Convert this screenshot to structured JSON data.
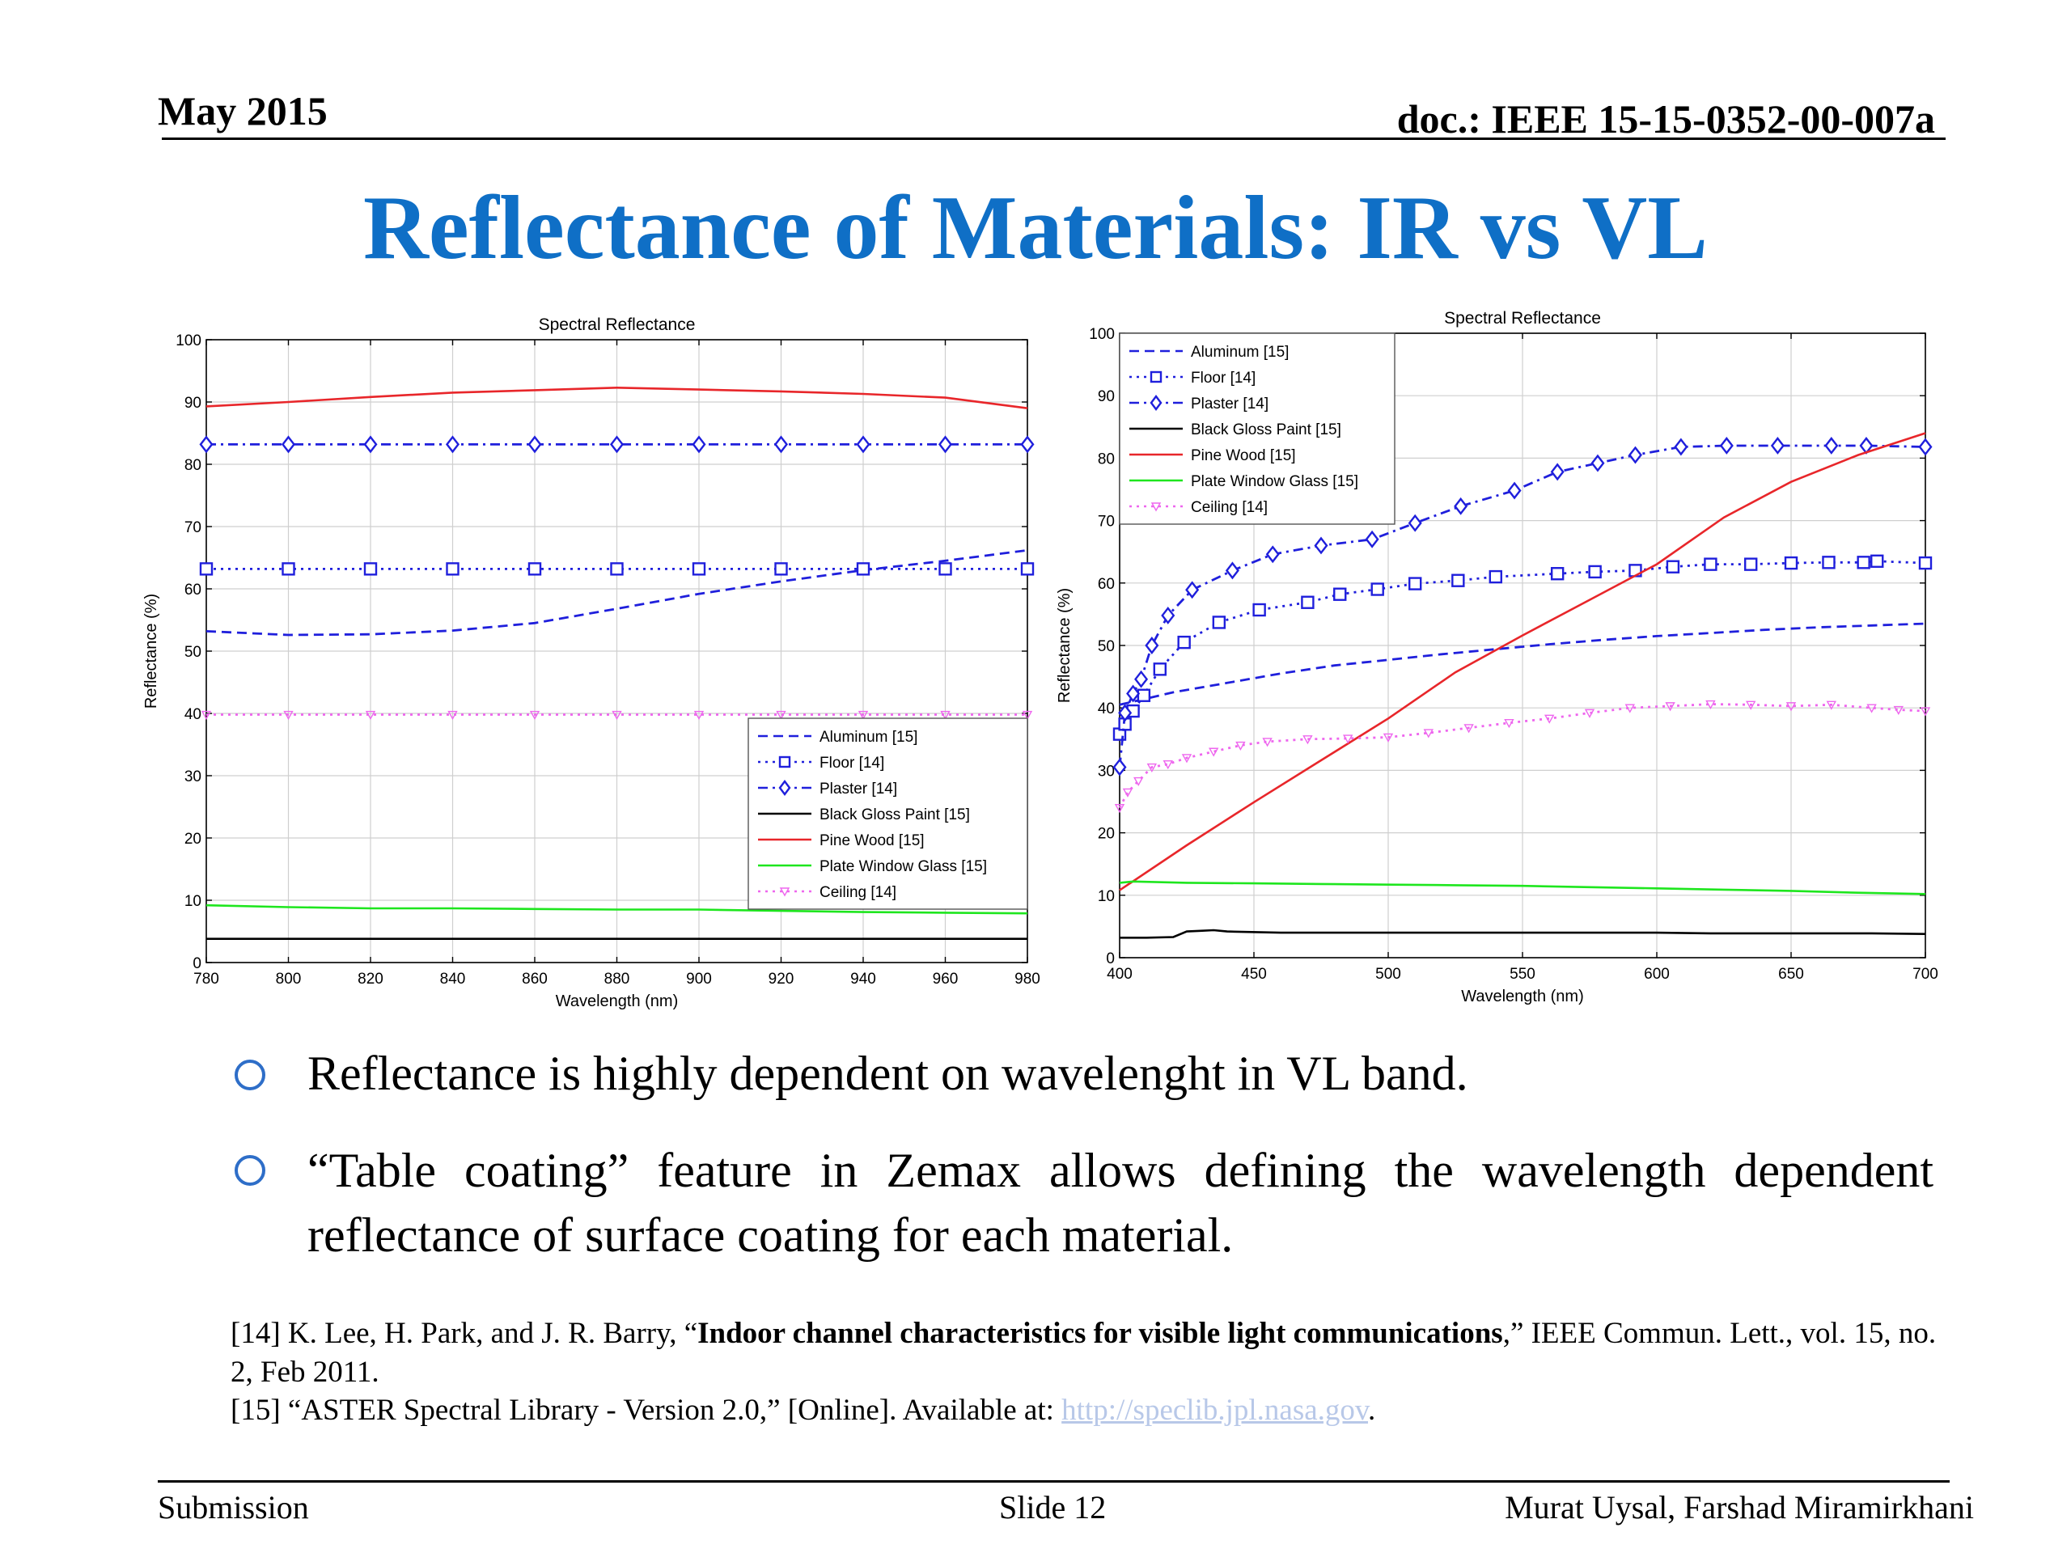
{
  "header": {
    "date": "May 2015",
    "doc": "doc.: IEEE 15-15-0352-00-007a"
  },
  "title": "Reflectance of Materials: IR vs VL",
  "bullets": [
    "Reflectance is highly dependent on wavelenght in VL band.",
    "“Table coating” feature in Zemax allows defining the wavelength dependent reflectance of surface coating for each material."
  ],
  "references": {
    "r14_prefix": "[14] K. Lee, H. Park, and J. R. Barry, “",
    "r14_title": "Indoor channel characteristics for visible light communications",
    "r14_suffix": ",” IEEE Commun. Lett., vol. 15,  no. 2, Feb 2011.",
    "r15_prefix": "[15] “ASTER Spectral Library - Version 2.0,” [Online]. Available at: ",
    "r15_link": "http://speclib.jpl.nasa.gov",
    "r15_suffix": "."
  },
  "footer": {
    "left": "Submission",
    "center": "Slide 12",
    "right": "Murat Uysal, Farshad Miramirkhani"
  },
  "colors": {
    "title": "#0f6fc6",
    "blue": "#1f1fdc",
    "red": "#e8262a",
    "green": "#1ee61e",
    "black": "#000000",
    "magenta": "#ee66ee",
    "bullet": "#2e6ec8"
  },
  "chart_data": [
    {
      "type": "line",
      "title": "Spectral Reflectance",
      "xlabel": "Wavelength (nm)",
      "ylabel": "Reflectance (%)",
      "xlim": [
        780,
        980
      ],
      "ylim": [
        0,
        100
      ],
      "xticks": [
        780,
        800,
        820,
        840,
        860,
        880,
        900,
        920,
        940,
        960,
        980
      ],
      "yticks": [
        0,
        10,
        20,
        30,
        40,
        50,
        60,
        70,
        80,
        90,
        100
      ],
      "grid": true,
      "legend_position": "bottom-right",
      "series": [
        {
          "name": "Aluminum [15]",
          "style": "dash",
          "color": "#1f1fdc",
          "x": [
            780,
            800,
            820,
            840,
            860,
            880,
            900,
            920,
            940,
            960,
            980
          ],
          "y": [
            53.2,
            52.6,
            52.7,
            53.3,
            54.5,
            56.8,
            59.2,
            61.2,
            63.0,
            64.5,
            66.2
          ]
        },
        {
          "name": "Floor [14]",
          "style": "dot",
          "marker": "square",
          "color": "#1f1fdc",
          "x": [
            780,
            800,
            820,
            840,
            860,
            880,
            900,
            920,
            940,
            960,
            980
          ],
          "y": [
            63.2,
            63.2,
            63.2,
            63.2,
            63.2,
            63.2,
            63.2,
            63.2,
            63.2,
            63.2,
            63.2
          ]
        },
        {
          "name": "Plaster [14]",
          "style": "dashdot",
          "marker": "diamond",
          "color": "#1f1fdc",
          "x": [
            780,
            800,
            820,
            840,
            860,
            880,
            900,
            920,
            940,
            960,
            980
          ],
          "y": [
            83.2,
            83.2,
            83.2,
            83.2,
            83.2,
            83.2,
            83.2,
            83.2,
            83.2,
            83.2,
            83.2
          ]
        },
        {
          "name": "Black Gloss Paint [15]",
          "style": "solid",
          "color": "#000000",
          "x": [
            780,
            800,
            820,
            840,
            860,
            880,
            900,
            920,
            940,
            960,
            980
          ],
          "y": [
            3.8,
            3.8,
            3.8,
            3.8,
            3.8,
            3.8,
            3.8,
            3.8,
            3.8,
            3.8,
            3.8
          ]
        },
        {
          "name": "Pine Wood [15]",
          "style": "solid",
          "color": "#e8262a",
          "x": [
            780,
            800,
            820,
            840,
            860,
            880,
            900,
            920,
            940,
            960,
            980
          ],
          "y": [
            89.3,
            90.0,
            90.8,
            91.5,
            91.9,
            92.3,
            92.0,
            91.7,
            91.3,
            90.7,
            89.0
          ]
        },
        {
          "name": "Plate Window Glass [15]",
          "style": "solid",
          "color": "#1ee61e",
          "x": [
            780,
            800,
            820,
            840,
            860,
            880,
            900,
            920,
            940,
            960,
            980
          ],
          "y": [
            9.2,
            8.9,
            8.7,
            8.7,
            8.6,
            8.5,
            8.5,
            8.3,
            8.1,
            8.0,
            7.9
          ]
        },
        {
          "name": "Ceiling [14]",
          "style": "dot",
          "marker": "triangle-down",
          "color": "#ee66ee",
          "x": [
            780,
            800,
            820,
            840,
            860,
            880,
            900,
            920,
            940,
            960,
            980
          ],
          "y": [
            39.8,
            39.8,
            39.8,
            39.8,
            39.8,
            39.8,
            39.8,
            39.8,
            39.8,
            39.8,
            39.8
          ]
        }
      ]
    },
    {
      "type": "line",
      "title": "Spectral Reflectance",
      "xlabel": "Wavelength (nm)",
      "ylabel": "Reflectance (%)",
      "xlim": [
        400,
        700
      ],
      "ylim": [
        0,
        100
      ],
      "xticks": [
        400,
        450,
        500,
        550,
        600,
        650,
        700
      ],
      "yticks": [
        0,
        10,
        20,
        30,
        40,
        50,
        60,
        70,
        80,
        90,
        100
      ],
      "grid": true,
      "legend_position": "top-left",
      "series": [
        {
          "name": "Aluminum [15]",
          "style": "dash",
          "color": "#1f1fdc",
          "x": [
            400,
            410,
            420,
            440,
            460,
            480,
            500,
            520,
            540,
            560,
            580,
            600,
            620,
            640,
            660,
            680,
            700
          ],
          "y": [
            40.5,
            41.5,
            42.5,
            44.0,
            45.5,
            46.8,
            47.7,
            48.6,
            49.4,
            50.2,
            50.9,
            51.5,
            52.0,
            52.5,
            52.9,
            53.2,
            53.5
          ]
        },
        {
          "name": "Floor [14]",
          "style": "dot",
          "marker": "square",
          "color": "#1f1fdc",
          "x": [
            400,
            402,
            405,
            409,
            415,
            424,
            437,
            452,
            470,
            482,
            496,
            510,
            526,
            540,
            563,
            577,
            592,
            606,
            620,
            635,
            650,
            664,
            677,
            682,
            700
          ],
          "y": [
            35.8,
            37.4,
            39.5,
            42.0,
            46.2,
            50.5,
            53.7,
            55.7,
            56.9,
            58.2,
            59.0,
            59.9,
            60.4,
            61.0,
            61.5,
            61.8,
            62.0,
            62.6,
            63.0,
            63.0,
            63.2,
            63.3,
            63.3,
            63.5,
            63.2
          ]
        },
        {
          "name": "Plaster [14]",
          "style": "dashdot",
          "marker": "diamond",
          "color": "#1f1fdc",
          "x": [
            400,
            402,
            405,
            408,
            412,
            418,
            427,
            442,
            457,
            475,
            494,
            510,
            527,
            547,
            563,
            578,
            592,
            609,
            626,
            645,
            665,
            678,
            700
          ],
          "y": [
            30.5,
            39.2,
            42.3,
            44.6,
            50.0,
            54.8,
            58.9,
            62.0,
            64.6,
            66.0,
            67.0,
            69.6,
            72.3,
            74.8,
            77.8,
            79.2,
            80.5,
            81.8,
            82.0,
            82.0,
            82.0,
            82.0,
            81.8
          ]
        },
        {
          "name": "Black Gloss Paint [15]",
          "style": "solid",
          "color": "#000000",
          "x": [
            400,
            410,
            420,
            425,
            430,
            435,
            440,
            460,
            480,
            500,
            520,
            540,
            560,
            580,
            600,
            620,
            640,
            660,
            680,
            700
          ],
          "y": [
            3.2,
            3.2,
            3.3,
            4.2,
            4.3,
            4.4,
            4.2,
            4.0,
            4.0,
            4.0,
            4.0,
            4.0,
            4.0,
            4.0,
            4.0,
            3.9,
            3.9,
            3.9,
            3.9,
            3.8
          ]
        },
        {
          "name": "Pine Wood [15]",
          "style": "solid",
          "color": "#e8262a",
          "x": [
            400,
            425,
            450,
            475,
            500,
            525,
            550,
            575,
            600,
            625,
            650,
            675,
            700
          ],
          "y": [
            10.8,
            18.0,
            24.9,
            31.6,
            38.3,
            45.7,
            51.6,
            57.3,
            63.0,
            70.5,
            76.2,
            80.5,
            84.0
          ]
        },
        {
          "name": "Plate Window Glass [15]",
          "style": "solid",
          "color": "#1ee61e",
          "x": [
            400,
            405,
            425,
            450,
            475,
            500,
            525,
            550,
            575,
            600,
            625,
            650,
            675,
            700
          ],
          "y": [
            12.0,
            12.2,
            12.0,
            11.9,
            11.8,
            11.7,
            11.6,
            11.5,
            11.3,
            11.1,
            10.9,
            10.7,
            10.4,
            10.2
          ]
        },
        {
          "name": "Ceiling [14]",
          "style": "dot",
          "marker": "triangle-down",
          "color": "#ee66ee",
          "x": [
            400,
            403,
            407,
            412,
            418,
            425,
            435,
            445,
            455,
            470,
            485,
            500,
            515,
            530,
            545,
            560,
            575,
            590,
            605,
            620,
            635,
            650,
            665,
            680,
            690,
            700
          ],
          "y": [
            24.0,
            26.5,
            28.3,
            30.5,
            31.0,
            32.0,
            33.0,
            34.0,
            34.6,
            35.0,
            35.1,
            35.3,
            36.0,
            36.8,
            37.6,
            38.3,
            39.2,
            40.0,
            40.3,
            40.6,
            40.5,
            40.3,
            40.5,
            40.0,
            39.7,
            39.5
          ]
        }
      ]
    }
  ]
}
